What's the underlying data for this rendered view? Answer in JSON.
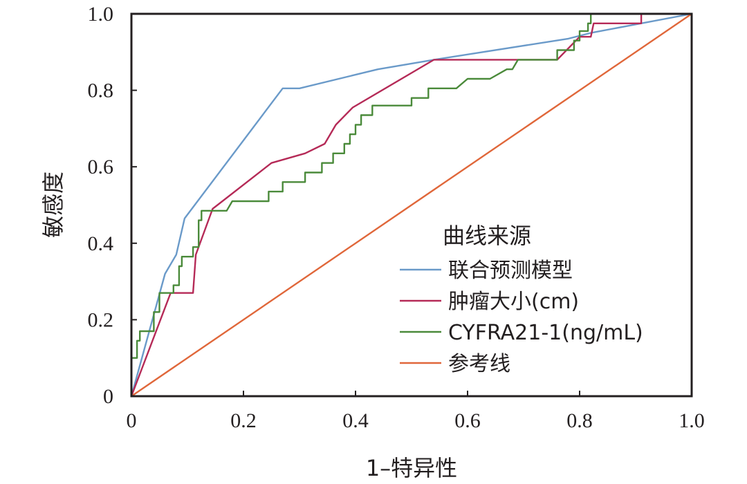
{
  "chart_data": {
    "type": "line",
    "title": "",
    "xlabel": "1–特异性",
    "ylabel": "敏感度",
    "xlim": [
      0,
      1.0
    ],
    "ylim": [
      0,
      1.0
    ],
    "xticks": [
      0,
      0.2,
      0.4,
      0.6,
      0.8,
      1.0
    ],
    "xtick_labels": [
      "0",
      "0.2",
      "0.4",
      "0.6",
      "0.8",
      "1.0"
    ],
    "yticks": [
      0,
      0.2,
      0.4,
      0.6,
      0.8,
      1.0
    ],
    "ytick_labels": [
      "0",
      "0.2",
      "0.4",
      "0.6",
      "0.8",
      "1.0"
    ],
    "grid": false,
    "legend": {
      "title": "曲线来源",
      "position": "bottom-right"
    },
    "series": [
      {
        "name": "联合预测模型",
        "color": "#6a9ac9",
        "points": [
          [
            0,
            0
          ],
          [
            0.06,
            0.32
          ],
          [
            0.08,
            0.37
          ],
          [
            0.095,
            0.465
          ],
          [
            0.27,
            0.805
          ],
          [
            0.3,
            0.805
          ],
          [
            0.44,
            0.855
          ],
          [
            0.54,
            0.88
          ],
          [
            0.78,
            0.935
          ],
          [
            0.82,
            0.95
          ],
          [
            1.0,
            1.0
          ]
        ]
      },
      {
        "name": "肿瘤大小(cm)",
        "color": "#b52a57",
        "points": [
          [
            0,
            0
          ],
          [
            0.07,
            0.27
          ],
          [
            0.11,
            0.27
          ],
          [
            0.115,
            0.37
          ],
          [
            0.145,
            0.49
          ],
          [
            0.25,
            0.61
          ],
          [
            0.31,
            0.635
          ],
          [
            0.345,
            0.66
          ],
          [
            0.365,
            0.71
          ],
          [
            0.395,
            0.755
          ],
          [
            0.54,
            0.88
          ],
          [
            0.76,
            0.88
          ],
          [
            0.8,
            0.94
          ],
          [
            0.82,
            0.94
          ],
          [
            0.825,
            0.975
          ],
          [
            0.91,
            0.975
          ],
          [
            0.91,
            1.0
          ],
          [
            1.0,
            1.0
          ]
        ]
      },
      {
        "name": "CYFRA21-1(ng/mL)",
        "color": "#4a8a3a",
        "points": [
          [
            0,
            0
          ],
          [
            0,
            0.1
          ],
          [
            0.01,
            0.1
          ],
          [
            0.01,
            0.145
          ],
          [
            0.015,
            0.145
          ],
          [
            0.015,
            0.17
          ],
          [
            0.04,
            0.17
          ],
          [
            0.04,
            0.22
          ],
          [
            0.05,
            0.22
          ],
          [
            0.05,
            0.27
          ],
          [
            0.075,
            0.27
          ],
          [
            0.075,
            0.29
          ],
          [
            0.085,
            0.29
          ],
          [
            0.085,
            0.34
          ],
          [
            0.09,
            0.34
          ],
          [
            0.09,
            0.365
          ],
          [
            0.11,
            0.365
          ],
          [
            0.11,
            0.39
          ],
          [
            0.12,
            0.39
          ],
          [
            0.12,
            0.46
          ],
          [
            0.125,
            0.46
          ],
          [
            0.125,
            0.485
          ],
          [
            0.17,
            0.485
          ],
          [
            0.18,
            0.51
          ],
          [
            0.245,
            0.51
          ],
          [
            0.245,
            0.535
          ],
          [
            0.27,
            0.535
          ],
          [
            0.27,
            0.56
          ],
          [
            0.31,
            0.56
          ],
          [
            0.31,
            0.585
          ],
          [
            0.34,
            0.585
          ],
          [
            0.34,
            0.61
          ],
          [
            0.36,
            0.61
          ],
          [
            0.36,
            0.635
          ],
          [
            0.38,
            0.635
          ],
          [
            0.38,
            0.66
          ],
          [
            0.39,
            0.66
          ],
          [
            0.39,
            0.685
          ],
          [
            0.4,
            0.685
          ],
          [
            0.4,
            0.71
          ],
          [
            0.41,
            0.71
          ],
          [
            0.41,
            0.735
          ],
          [
            0.43,
            0.735
          ],
          [
            0.43,
            0.76
          ],
          [
            0.5,
            0.76
          ],
          [
            0.5,
            0.78
          ],
          [
            0.53,
            0.78
          ],
          [
            0.53,
            0.805
          ],
          [
            0.58,
            0.805
          ],
          [
            0.6,
            0.83
          ],
          [
            0.64,
            0.83
          ],
          [
            0.67,
            0.855
          ],
          [
            0.68,
            0.855
          ],
          [
            0.69,
            0.88
          ],
          [
            0.73,
            0.88
          ],
          [
            0.73,
            0.88
          ],
          [
            0.76,
            0.88
          ],
          [
            0.76,
            0.905
          ],
          [
            0.79,
            0.905
          ],
          [
            0.79,
            0.93
          ],
          [
            0.8,
            0.93
          ],
          [
            0.8,
            0.955
          ],
          [
            0.815,
            0.955
          ],
          [
            0.815,
            0.975
          ],
          [
            0.82,
            0.975
          ],
          [
            0.82,
            1.0
          ],
          [
            1.0,
            1.0
          ]
        ]
      },
      {
        "name": "参考线",
        "color": "#e0673a",
        "points": [
          [
            0,
            0
          ],
          [
            1.0,
            1.0
          ]
        ]
      }
    ]
  }
}
